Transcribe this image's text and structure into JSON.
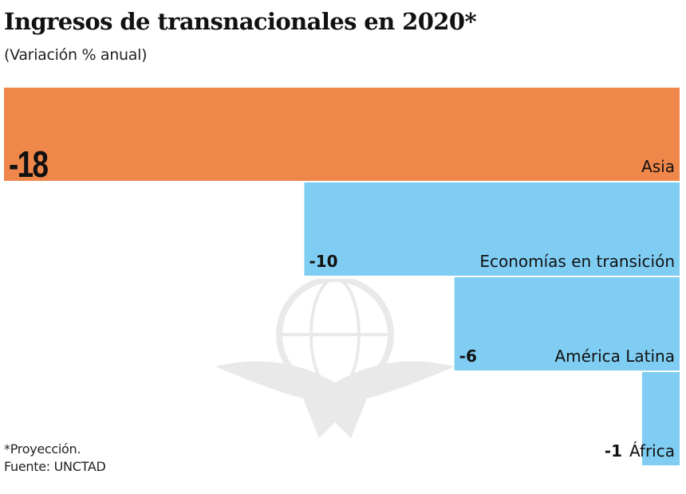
{
  "header": {
    "title": "Ingresos de transnacionales en 2020*",
    "subtitle": "(Variación % anual)"
  },
  "footer": {
    "note": "*Proyección.",
    "source": "Fuente: UNCTAD"
  },
  "colors": {
    "highlight": "#F0874A",
    "default": "#80CDF3",
    "text": "#111111"
  },
  "chart_data": {
    "type": "bar",
    "orientation": "horizontal",
    "title": "Ingresos de transnacionales en 2020*",
    "subtitle": "(Variación % anual)",
    "categories": [
      "Asia",
      "Economías en transición",
      "América Latina",
      "África"
    ],
    "values": [
      -18,
      -10,
      -6,
      -1
    ],
    "value_labels": [
      "-18",
      "-10",
      "-6",
      "-1"
    ],
    "highlight": "Asia",
    "xlim": [
      -18,
      0
    ],
    "xlabel": "",
    "ylabel": "",
    "grid": false,
    "legend": "none"
  }
}
